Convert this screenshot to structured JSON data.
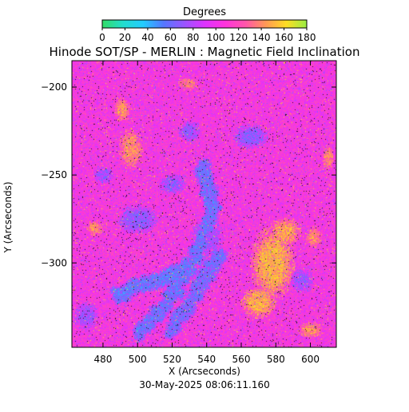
{
  "chart_data": {
    "type": "heatmap",
    "title": "Hinode SOT/SP - MERLIN : Magnetic Field Inclination",
    "xlabel": "X (Arcseconds)",
    "ylabel": "Y (Arcseconds)",
    "xlim": [
      462,
      615
    ],
    "ylim": [
      -348,
      -185
    ],
    "x_ticks": [
      480,
      500,
      520,
      540,
      560,
      580,
      600
    ],
    "y_ticks": [
      -200,
      -250,
      -300
    ],
    "timestamp": "30-May-2025 08:06:11.160",
    "colorbar": {
      "label": "Degrees",
      "range": [
        0,
        180
      ],
      "ticks": [
        0,
        20,
        40,
        60,
        80,
        100,
        120,
        140,
        160,
        180
      ],
      "colors": [
        "#33dd66",
        "#22ddcc",
        "#22ccff",
        "#5577ff",
        "#9955ff",
        "#dd33ff",
        "#ff33dd",
        "#ff55aa",
        "#ff9955",
        "#ffdd22",
        "#99ee44"
      ]
    },
    "background_value": 105,
    "features": [
      {
        "type": "filament",
        "value": 62,
        "points": [
          [
            500,
            -340
          ],
          [
            510,
            -330
          ],
          [
            520,
            -318
          ],
          [
            528,
            -305
          ],
          [
            535,
            -292
          ],
          [
            540,
            -280
          ],
          [
            543,
            -268
          ],
          [
            540,
            -255
          ],
          [
            537,
            -245
          ]
        ]
      },
      {
        "type": "filament",
        "value": 60,
        "points": [
          [
            488,
            -318
          ],
          [
            500,
            -313
          ],
          [
            512,
            -310
          ],
          [
            522,
            -306
          ],
          [
            530,
            -302
          ]
        ]
      },
      {
        "type": "filament",
        "value": 64,
        "points": [
          [
            520,
            -338
          ],
          [
            528,
            -326
          ],
          [
            536,
            -314
          ],
          [
            542,
            -302
          ],
          [
            548,
            -296
          ]
        ]
      },
      {
        "type": "patch",
        "value": 150,
        "x": 578,
        "y": -300,
        "rx": 11,
        "ry": 18
      },
      {
        "type": "patch",
        "value": 148,
        "x": 570,
        "y": -322,
        "rx": 9,
        "ry": 8
      },
      {
        "type": "patch",
        "value": 145,
        "x": 585,
        "y": -282,
        "rx": 8,
        "ry": 7
      },
      {
        "type": "patch",
        "value": 140,
        "x": 496,
        "y": -235,
        "rx": 6,
        "ry": 10
      },
      {
        "type": "patch",
        "value": 140,
        "x": 491,
        "y": -213,
        "rx": 4,
        "ry": 6
      },
      {
        "type": "patch",
        "value": 135,
        "x": 529,
        "y": -198,
        "rx": 5,
        "ry": 3
      },
      {
        "type": "patch",
        "value": 138,
        "x": 475,
        "y": -280,
        "rx": 4,
        "ry": 4
      },
      {
        "type": "patch",
        "value": 140,
        "x": 600,
        "y": -338,
        "rx": 6,
        "ry": 4
      },
      {
        "type": "patch",
        "value": 138,
        "x": 602,
        "y": -285,
        "rx": 4,
        "ry": 5
      },
      {
        "type": "patch",
        "value": 136,
        "x": 610,
        "y": -240,
        "rx": 3,
        "ry": 6
      },
      {
        "type": "patch",
        "value": 70,
        "x": 500,
        "y": -275,
        "rx": 10,
        "ry": 7
      },
      {
        "type": "patch",
        "value": 72,
        "x": 520,
        "y": -255,
        "rx": 7,
        "ry": 5
      },
      {
        "type": "patch",
        "value": 70,
        "x": 565,
        "y": -228,
        "rx": 9,
        "ry": 6
      },
      {
        "type": "patch",
        "value": 75,
        "x": 540,
        "y": -285,
        "rx": 8,
        "ry": 10
      },
      {
        "type": "patch",
        "value": 72,
        "x": 530,
        "y": -225,
        "rx": 6,
        "ry": 5
      },
      {
        "type": "patch",
        "value": 74,
        "x": 595,
        "y": -310,
        "rx": 6,
        "ry": 6
      },
      {
        "type": "patch",
        "value": 76,
        "x": 470,
        "y": -330,
        "rx": 6,
        "ry": 7
      },
      {
        "type": "patch",
        "value": 74,
        "x": 480,
        "y": -250,
        "rx": 5,
        "ry": 4
      }
    ]
  }
}
